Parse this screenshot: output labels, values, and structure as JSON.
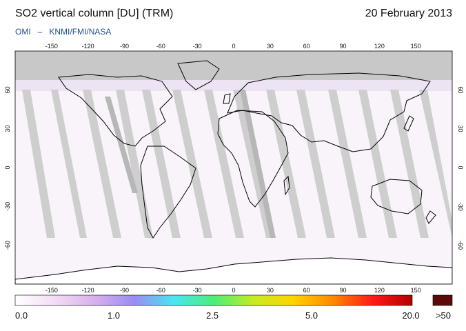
{
  "header": {
    "title": "SO2 vertical column [DU] (TRM)",
    "date": "20 February 2013",
    "credit_left": "OMI",
    "credit_dash": "–",
    "credit_right": "KNMI/FMI/NASA"
  },
  "map": {
    "lon_ticks": [
      "-150",
      "-120",
      "-90",
      "-60",
      "-30",
      "0",
      "30",
      "60",
      "90",
      "120",
      "150"
    ],
    "lat_ticks": [
      "60",
      "30",
      "0",
      "-30",
      "-60"
    ],
    "colors": {
      "no_data": "#c8c8c8",
      "background": "#f8f4fa",
      "coast": "#000000"
    }
  },
  "colorbar": {
    "labels": [
      "0.0",
      "1.0",
      "2.5",
      "5.0",
      "20.0"
    ],
    "over_label": ">50",
    "over_color": "#5a0a0a",
    "stops": [
      "#ffffff",
      "#f4dcf4",
      "#d8b0ec",
      "#9a8cf2",
      "#49e6f2",
      "#49ee7a",
      "#c6ec22",
      "#ffd400",
      "#ff8800",
      "#ff1a1a",
      "#b40000"
    ]
  }
}
